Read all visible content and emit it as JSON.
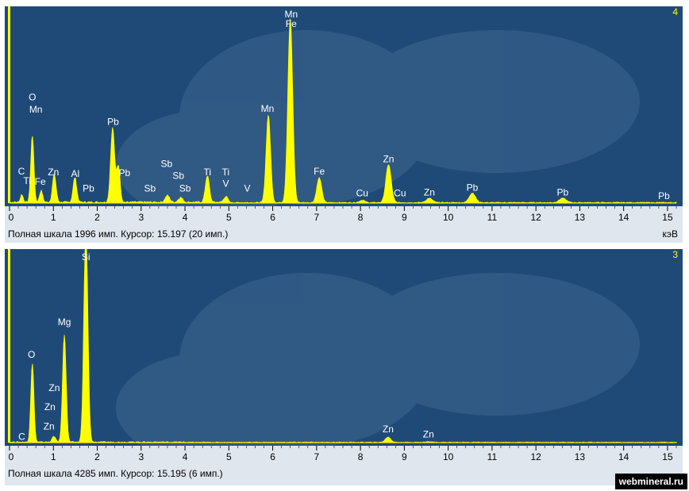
{
  "chart_data": [
    {
      "type": "line",
      "panel_number": "4",
      "xlabel": "кэВ",
      "xlim": [
        0,
        15.2
      ],
      "ylim": [
        0,
        2000
      ],
      "x_ticks": [
        "0",
        "1",
        "2",
        "3",
        "4",
        "5",
        "6",
        "7",
        "8",
        "9",
        "10",
        "11",
        "12",
        "13",
        "14",
        "15"
      ],
      "status_text": "Полная шкала 1996 имп. Курсор: 15.197  (20 имп.)",
      "peaks": [
        {
          "x": 0.28,
          "y": 80,
          "w": 0.03
        },
        {
          "x": 0.52,
          "y": 700,
          "w": 0.035
        },
        {
          "x": 0.72,
          "y": 120,
          "w": 0.035
        },
        {
          "x": 1.02,
          "y": 290,
          "w": 0.04
        },
        {
          "x": 1.49,
          "y": 260,
          "w": 0.04
        },
        {
          "x": 2.35,
          "y": 780,
          "w": 0.045
        },
        {
          "x": 2.48,
          "y": 380,
          "w": 0.04
        },
        {
          "x": 3.6,
          "y": 70,
          "w": 0.05
        },
        {
          "x": 3.9,
          "y": 50,
          "w": 0.05
        },
        {
          "x": 4.51,
          "y": 280,
          "w": 0.045
        },
        {
          "x": 4.93,
          "y": 60,
          "w": 0.045
        },
        {
          "x": 5.9,
          "y": 920,
          "w": 0.05
        },
        {
          "x": 6.4,
          "y": 1930,
          "w": 0.055
        },
        {
          "x": 7.06,
          "y": 260,
          "w": 0.055
        },
        {
          "x": 8.04,
          "y": 25,
          "w": 0.06
        },
        {
          "x": 8.64,
          "y": 400,
          "w": 0.06
        },
        {
          "x": 9.57,
          "y": 45,
          "w": 0.07
        },
        {
          "x": 10.55,
          "y": 100,
          "w": 0.07
        },
        {
          "x": 12.61,
          "y": 45,
          "w": 0.08
        }
      ],
      "labels": [
        {
          "text": "C",
          "x": 0.27,
          "y": 300
        },
        {
          "text": "Ti",
          "x": 0.4,
          "y": 200
        },
        {
          "text": "Fe",
          "x": 0.7,
          "y": 190
        },
        {
          "text": "O",
          "x": 0.52,
          "y": 1080
        },
        {
          "text": "Mn",
          "x": 0.6,
          "y": 950
        },
        {
          "text": "Zn",
          "x": 1.0,
          "y": 290
        },
        {
          "text": "Al",
          "x": 1.5,
          "y": 275
        },
        {
          "text": "Pb",
          "x": 1.8,
          "y": 120
        },
        {
          "text": "Pb",
          "x": 2.36,
          "y": 820
        },
        {
          "text": "Pb",
          "x": 2.62,
          "y": 285
        },
        {
          "text": "Sb",
          "x": 3.2,
          "y": 120
        },
        {
          "text": "Sb",
          "x": 3.58,
          "y": 380
        },
        {
          "text": "Sb",
          "x": 3.85,
          "y": 255
        },
        {
          "text": "Sb",
          "x": 4.0,
          "y": 120
        },
        {
          "text": "Ti",
          "x": 4.51,
          "y": 290
        },
        {
          "text": "Ti",
          "x": 4.93,
          "y": 290
        },
        {
          "text": "V",
          "x": 4.93,
          "y": 170
        },
        {
          "text": "V",
          "x": 5.42,
          "y": 120
        },
        {
          "text": "Mn",
          "x": 5.88,
          "y": 960
        },
        {
          "text": "Mn",
          "x": 6.42,
          "y": 1990
        },
        {
          "text": "Fe",
          "x": 6.42,
          "y": 1850
        },
        {
          "text": "Fe",
          "x": 7.06,
          "y": 300
        },
        {
          "text": "Cu",
          "x": 8.04,
          "y": 70
        },
        {
          "text": "Zn",
          "x": 8.64,
          "y": 430
        },
        {
          "text": "Cu",
          "x": 8.9,
          "y": 70
        },
        {
          "text": "Zn",
          "x": 9.57,
          "y": 80
        },
        {
          "text": "Pb",
          "x": 10.55,
          "y": 130
        },
        {
          "text": "Pb",
          "x": 12.61,
          "y": 80
        },
        {
          "text": "Pb",
          "x": 14.92,
          "y": 40
        }
      ]
    },
    {
      "type": "line",
      "panel_number": "3",
      "xlabel": "",
      "xlim": [
        0,
        15.2
      ],
      "ylim": [
        0,
        4300
      ],
      "x_ticks": [
        "0",
        "1",
        "2",
        "3",
        "4",
        "5",
        "6",
        "7",
        "8",
        "9",
        "10",
        "11",
        "12",
        "13",
        "14",
        "15"
      ],
      "status_text": "Полная шкала 4285 имп. Курсор: 15.195  (6 имп.)",
      "peaks": [
        {
          "x": 0.52,
          "y": 1800,
          "w": 0.035
        },
        {
          "x": 1.01,
          "y": 130,
          "w": 0.04
        },
        {
          "x": 1.25,
          "y": 2470,
          "w": 0.04
        },
        {
          "x": 1.74,
          "y": 5000,
          "w": 0.045
        },
        {
          "x": 8.63,
          "y": 120,
          "w": 0.06
        },
        {
          "x": 9.57,
          "y": 15,
          "w": 0.07
        }
      ],
      "labels": [
        {
          "text": "C",
          "x": 0.28,
          "y": 60
        },
        {
          "text": "O",
          "x": 0.5,
          "y": 1950
        },
        {
          "text": "Zn",
          "x": 0.9,
          "y": 300
        },
        {
          "text": "Zn",
          "x": 0.92,
          "y": 750
        },
        {
          "text": "Zn",
          "x": 1.02,
          "y": 1180
        },
        {
          "text": "Mg",
          "x": 1.25,
          "y": 2700
        },
        {
          "text": "Si",
          "x": 1.74,
          "y": 5400
        },
        {
          "text": "Zn",
          "x": 8.63,
          "y": 240
        },
        {
          "text": "Zn",
          "x": 9.55,
          "y": 120
        }
      ]
    }
  ],
  "watermark": "webmineral.ru"
}
